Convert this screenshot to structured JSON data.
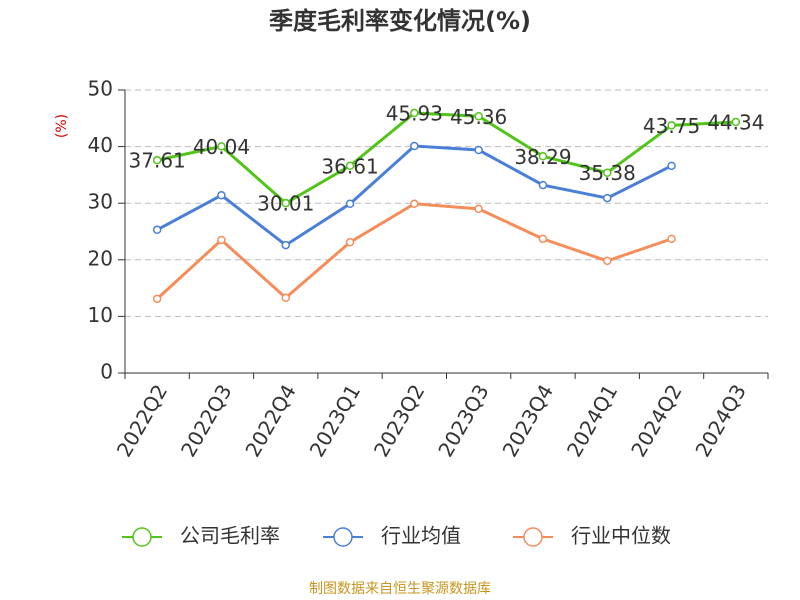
{
  "chart_data": {
    "type": "line",
    "title": "季度毛利率变化情况(%)",
    "y_label": "(%)",
    "categories": [
      "2022Q2",
      "2022Q3",
      "2022Q4",
      "2023Q1",
      "2023Q2",
      "2023Q3",
      "2023Q4",
      "2024Q1",
      "2024Q2",
      "2024Q3"
    ],
    "series": [
      {
        "name": "公司毛利率",
        "color": "#52c41a",
        "values": [
          37.61,
          40.04,
          30.01,
          36.61,
          45.93,
          45.36,
          38.29,
          35.38,
          43.75,
          44.34
        ]
      },
      {
        "name": "行业均值",
        "color": "#4a7fd8",
        "values": [
          25.3,
          31.4,
          22.6,
          29.9,
          40.1,
          39.4,
          33.2,
          30.9,
          36.6,
          null
        ]
      },
      {
        "name": "行业中位数",
        "color": "#f58d5a",
        "values": [
          13.1,
          23.5,
          13.3,
          23.1,
          29.9,
          29.0,
          23.7,
          19.8,
          23.7,
          null
        ]
      }
    ],
    "ylim": [
      0,
      50
    ],
    "yticks": [
      0,
      10,
      20,
      30,
      40,
      50
    ],
    "grid": true,
    "legend": "bottom",
    "source": "制图数据来自恒生聚源数据库"
  }
}
